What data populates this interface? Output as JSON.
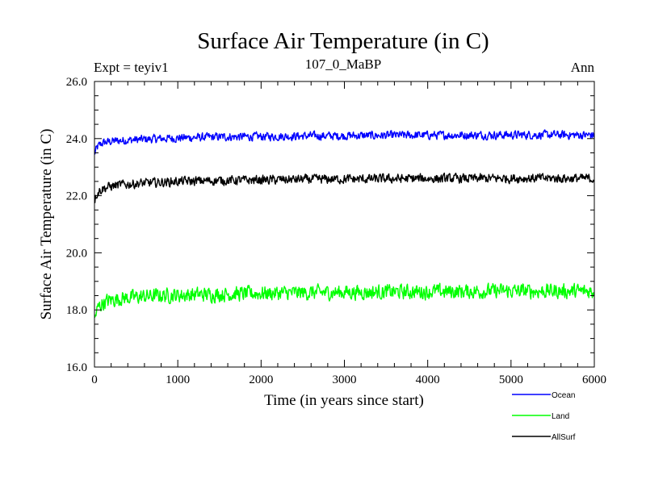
{
  "chart_data": {
    "type": "line",
    "title": "Surface Air Temperature (in C)",
    "subtitle_left": "Expt = teyiv1",
    "subtitle_center": "107_0_MaBP",
    "subtitle_right": "Ann",
    "xlabel": "Time (in years since start)",
    "ylabel": "Surface Air Temperature (in C)",
    "xlim": [
      0,
      6000
    ],
    "ylim": [
      16.0,
      26.0
    ],
    "x_ticks": [
      0,
      1000,
      2000,
      3000,
      4000,
      5000,
      6000
    ],
    "y_ticks": [
      16.0,
      18.0,
      20.0,
      22.0,
      24.0,
      26.0
    ],
    "x_tick_labels": [
      "0",
      "1000",
      "2000",
      "3000",
      "4000",
      "5000",
      "6000"
    ],
    "y_tick_labels": [
      "16.0",
      "18.0",
      "20.0",
      "22.0",
      "24.0",
      "26.0"
    ],
    "grid": false,
    "legend_position": "bottom-right, below plot",
    "x": [
      0,
      25,
      50,
      100,
      200,
      300,
      500,
      750,
      1000,
      1500,
      2000,
      2500,
      3000,
      3500,
      4000,
      4500,
      5000,
      5500,
      6000
    ],
    "series": [
      {
        "name": "Ocean",
        "color": "#0000ff",
        "values": [
          23.45,
          23.65,
          23.75,
          23.85,
          23.9,
          23.93,
          23.96,
          23.99,
          24.02,
          24.06,
          24.07,
          24.09,
          24.1,
          24.11,
          24.12,
          24.12,
          24.13,
          24.13,
          24.12
        ],
        "noise_amplitude": 0.2
      },
      {
        "name": "Land",
        "color": "#00ff00",
        "values": [
          17.6,
          17.95,
          18.1,
          18.25,
          18.35,
          18.4,
          18.45,
          18.5,
          18.52,
          18.55,
          18.58,
          18.6,
          18.62,
          18.63,
          18.64,
          18.65,
          18.66,
          18.66,
          18.65
        ],
        "noise_amplitude": 0.35
      },
      {
        "name": "AllSurf",
        "color": "#000000",
        "values": [
          21.85,
          22.05,
          22.15,
          22.25,
          22.33,
          22.38,
          22.42,
          22.46,
          22.5,
          22.53,
          22.55,
          22.57,
          22.58,
          22.59,
          22.6,
          22.6,
          22.61,
          22.61,
          22.6
        ],
        "noise_amplitude": 0.22
      }
    ]
  }
}
